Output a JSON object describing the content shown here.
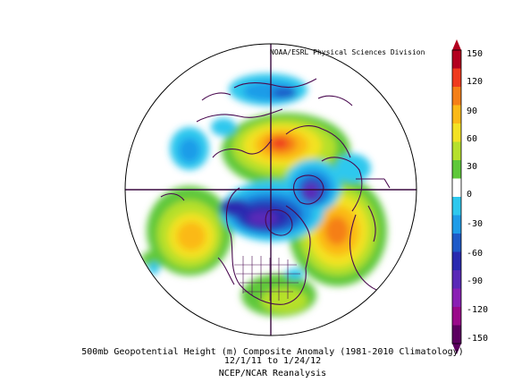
{
  "header": {
    "credit": "NOAA/ESRL Physical Sciences Division"
  },
  "caption": {
    "line1": "500mb Geopotential Height (m) Composite Anomaly (1981-2010 Climatology)",
    "line2": "12/1/11  to 1/24/12",
    "line3": "NCEP/NCAR Reanalysis"
  },
  "colorbar": {
    "ticks": [
      "150",
      "120",
      "90",
      "60",
      "30",
      "0",
      "-30",
      "-60",
      "-90",
      "-120",
      "-150"
    ],
    "colors": [
      "#b3001f",
      "#ef3a1e",
      "#f57f17",
      "#fbb917",
      "#f3e224",
      "#b6e02c",
      "#5ec83a",
      "#ffffff",
      "#2ec8ee",
      "#1e9ce8",
      "#1e5ac8",
      "#2a2ab0",
      "#5a2ab8",
      "#8a20b4",
      "#9a0a8a",
      "#5c0060"
    ]
  }
}
